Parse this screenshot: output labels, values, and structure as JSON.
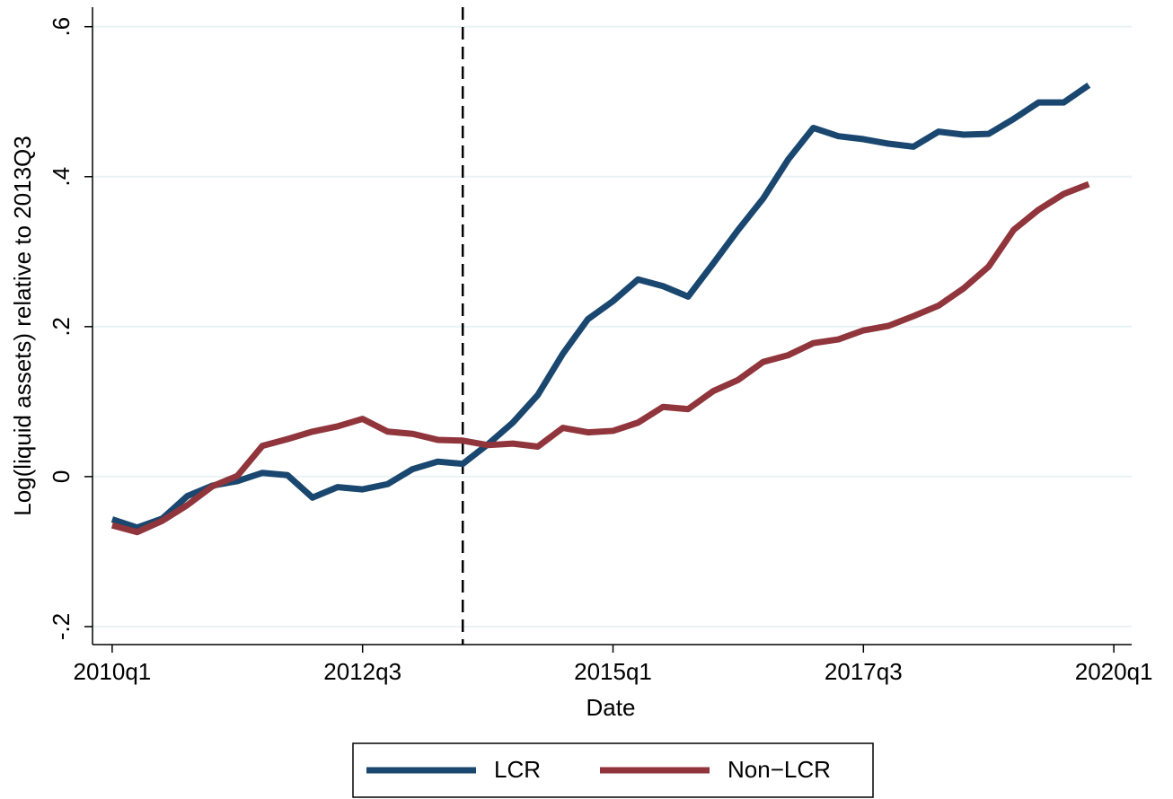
{
  "chart_data": {
    "type": "line",
    "y_label": "Log(liquid assets) relative to 2013Q3",
    "x_label": "Date",
    "x": [
      "2010q1",
      "2010q2",
      "2010q3",
      "2010q4",
      "2011q1",
      "2011q2",
      "2011q3",
      "2011q4",
      "2012q1",
      "2012q2",
      "2012q3",
      "2012q4",
      "2013q1",
      "2013q2",
      "2013q3",
      "2013q4",
      "2014q1",
      "2014q2",
      "2014q3",
      "2014q4",
      "2015q1",
      "2015q2",
      "2015q3",
      "2015q4",
      "2016q1",
      "2016q2",
      "2016q3",
      "2016q4",
      "2017q1",
      "2017q2",
      "2017q3",
      "2017q4",
      "2018q1",
      "2018q2",
      "2018q3",
      "2018q4",
      "2019q1",
      "2019q2",
      "2019q3",
      "2019q4"
    ],
    "series": [
      {
        "name": "LCR",
        "color": "#1a476f",
        "values": [
          -0.057,
          -0.068,
          -0.056,
          -0.026,
          -0.012,
          -0.006,
          0.005,
          0.002,
          -0.028,
          -0.014,
          -0.017,
          -0.01,
          0.01,
          0.02,
          0.017,
          0.043,
          0.072,
          0.109,
          0.164,
          0.21,
          0.234,
          0.263,
          0.254,
          0.24,
          0.284,
          0.329,
          0.371,
          0.423,
          0.465,
          0.454,
          0.45,
          0.444,
          0.44,
          0.46,
          0.456,
          0.457,
          0.477,
          0.499,
          0.499,
          0.522
        ]
      },
      {
        "name": "Non−LCR",
        "color": "#90353b",
        "values": [
          -0.065,
          -0.074,
          -0.059,
          -0.038,
          -0.013,
          0.001,
          0.041,
          0.05,
          0.06,
          0.067,
          0.077,
          0.06,
          0.057,
          0.049,
          0.048,
          0.042,
          0.044,
          0.04,
          0.065,
          0.059,
          0.061,
          0.072,
          0.093,
          0.09,
          0.114,
          0.129,
          0.153,
          0.162,
          0.178,
          0.183,
          0.195,
          0.201,
          0.214,
          0.228,
          0.251,
          0.28,
          0.329,
          0.356,
          0.377,
          0.39
        ]
      }
    ],
    "vline": "2013q3",
    "xlim": [
      "2009q4",
      "2020q2"
    ],
    "xticks": [
      "2010q1",
      "2012q3",
      "2015q1",
      "2017q3",
      "2020q1"
    ],
    "ylim": [
      -0.224,
      0.626
    ],
    "yticks": [
      {
        "value": -0.2,
        "label": "-.2"
      },
      0,
      {
        "value": 0.2,
        "label": ".2"
      },
      {
        "value": 0.4,
        "label": ".4"
      },
      {
        "value": 0.6,
        "label": ".6"
      }
    ],
    "grid": true,
    "legend": "bottom"
  }
}
